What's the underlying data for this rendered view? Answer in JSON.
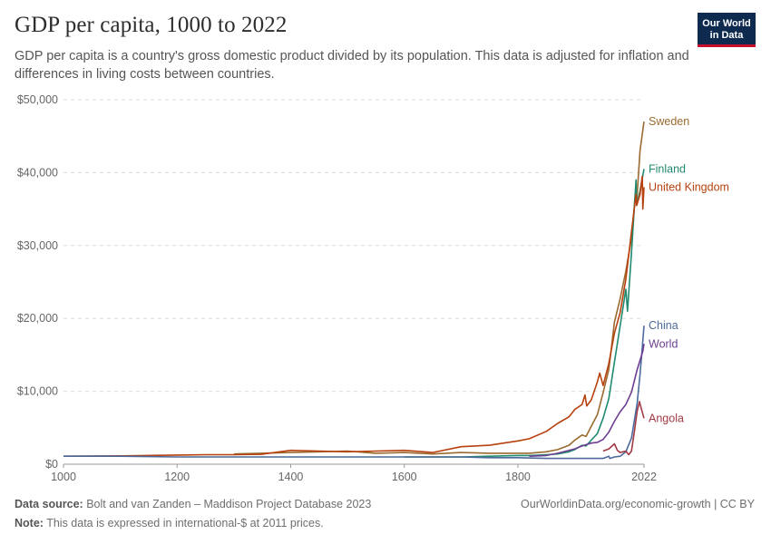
{
  "header": {
    "title": "GDP per capita, 1000 to 2022",
    "subtitle": "GDP per capita is a country's gross domestic product divided by its population. This data is adjusted for inflation and differences in living costs between countries."
  },
  "logo": {
    "line1": "Our World",
    "line2": "in Data",
    "bg": "#0e2a4f",
    "accent": "#c8102e"
  },
  "footer": {
    "source_label": "Data source:",
    "source_text": "Bolt and van Zanden – Maddison Project Database 2023",
    "note_label": "Note:",
    "note_text": "This data is expressed in international-$ at 2011 prices.",
    "link_text": "OurWorldinData.org/economic-growth | CC BY"
  },
  "chart_data": {
    "type": "line",
    "title": "GDP per capita, 1000 to 2022",
    "xlabel": "",
    "ylabel": "",
    "xlim": [
      1000,
      2022
    ],
    "ylim": [
      0,
      50000
    ],
    "x_ticks": [
      1000,
      1200,
      1400,
      1600,
      1800,
      2022
    ],
    "x_tick_labels": [
      "1000",
      "1200",
      "1400",
      "1600",
      "1800",
      "2022"
    ],
    "y_ticks": [
      0,
      10000,
      20000,
      30000,
      40000,
      50000
    ],
    "y_tick_labels": [
      "$0",
      "$10,000",
      "$20,000",
      "$30,000",
      "$40,000",
      "$50,000"
    ],
    "grid": "horizontal dashed",
    "legend": "direct labels at line ends (right)",
    "series": [
      {
        "name": "Sweden",
        "color": "#9a6a2f",
        "x": [
          1300,
          1350,
          1400,
          1450,
          1500,
          1550,
          1600,
          1650,
          1700,
          1750,
          1800,
          1820,
          1850,
          1870,
          1890,
          1900,
          1913,
          1920,
          1929,
          1940,
          1950,
          1960,
          1970,
          1980,
          1990,
          2000,
          2008,
          2009,
          2015,
          2022
        ],
        "y": [
          1400,
          1500,
          1600,
          1700,
          1800,
          1500,
          1600,
          1400,
          1600,
          1500,
          1500,
          1500,
          1700,
          2000,
          2600,
          3300,
          4000,
          3800,
          5200,
          6800,
          9800,
          13000,
          19500,
          22700,
          26500,
          31000,
          38000,
          36000,
          43000,
          47000
        ]
      },
      {
        "name": "Finland",
        "color": "#1f8a6f",
        "x": [
          1600,
          1650,
          1700,
          1750,
          1800,
          1820,
          1850,
          1870,
          1890,
          1900,
          1913,
          1920,
          1929,
          1940,
          1950,
          1960,
          1970,
          1980,
          1990,
          1993,
          2000,
          2008,
          2009,
          2015,
          2022
        ],
        "y": [
          1000,
          1000,
          1000,
          1100,
          1200,
          1200,
          1300,
          1400,
          1700,
          2000,
          2600,
          2500,
          3300,
          4200,
          6300,
          9000,
          14000,
          19000,
          24000,
          21000,
          29000,
          39000,
          35500,
          37500,
          40500
        ]
      },
      {
        "name": "United Kingdom",
        "color": "#b7410e",
        "x": [
          1000,
          1100,
          1200,
          1252,
          1300,
          1348,
          1400,
          1450,
          1500,
          1550,
          1600,
          1650,
          1700,
          1750,
          1800,
          1820,
          1850,
          1870,
          1890,
          1900,
          1913,
          1918,
          1921,
          1929,
          1940,
          1944,
          1950,
          1960,
          1970,
          1980,
          1990,
          2000,
          2008,
          2009,
          2015,
          2019,
          2020,
          2022
        ],
        "y": [
          1100,
          1150,
          1250,
          1300,
          1300,
          1350,
          1900,
          1800,
          1700,
          1800,
          1900,
          1600,
          2400,
          2600,
          3200,
          3500,
          4500,
          5600,
          6500,
          7500,
          8200,
          9500,
          8000,
          8800,
          11300,
          12500,
          10800,
          13800,
          18000,
          20800,
          25400,
          31900,
          37000,
          35500,
          37000,
          39500,
          35000,
          38000
        ]
      },
      {
        "name": "China",
        "color": "#4c6a9c",
        "x": [
          1000,
          1100,
          1200,
          1300,
          1400,
          1500,
          1600,
          1700,
          1750,
          1800,
          1850,
          1900,
          1950,
          1960,
          1962,
          1970,
          1980,
          1990,
          2000,
          2010,
          2015,
          2019,
          2022
        ],
        "y": [
          1100,
          1100,
          1000,
          1000,
          1000,
          1000,
          1000,
          1000,
          900,
          900,
          800,
          800,
          800,
          1100,
          800,
          1000,
          1100,
          1700,
          3600,
          8400,
          12300,
          16000,
          19000
        ]
      },
      {
        "name": "World",
        "color": "#6d3e91",
        "x": [
          1820,
          1850,
          1870,
          1900,
          1913,
          1929,
          1940,
          1950,
          1960,
          1970,
          1980,
          1990,
          2000,
          2010,
          2020,
          2022
        ],
        "y": [
          1100,
          1200,
          1500,
          2100,
          2500,
          2900,
          3000,
          3400,
          4400,
          5900,
          7200,
          8200,
          9900,
          13000,
          15500,
          16500
        ]
      },
      {
        "name": "Angola",
        "color": "#a23a45",
        "x": [
          1950,
          1960,
          1970,
          1975,
          1980,
          1985,
          1990,
          1995,
          2000,
          2005,
          2010,
          2014,
          2016,
          2022
        ],
        "y": [
          1800,
          2100,
          2800,
          1900,
          1600,
          1700,
          1800,
          1300,
          1800,
          4500,
          7300,
          8600,
          8000,
          6300
        ]
      }
    ]
  }
}
